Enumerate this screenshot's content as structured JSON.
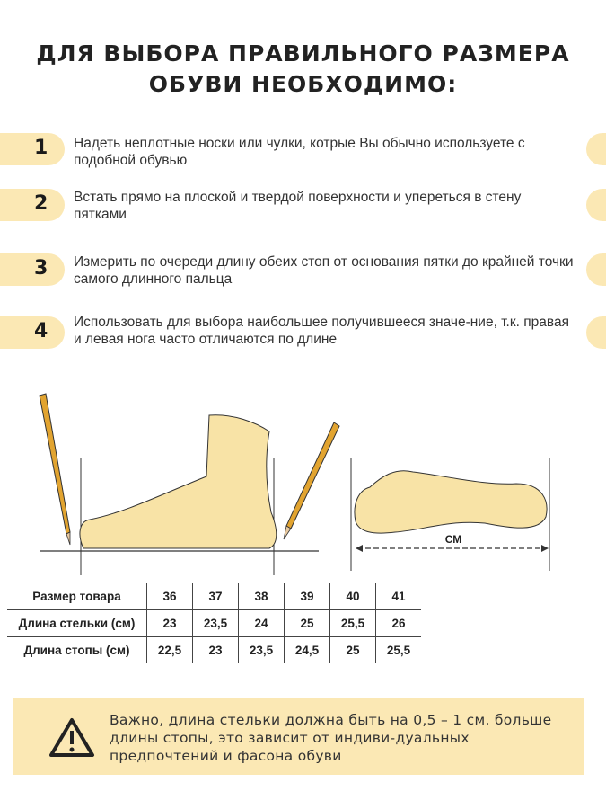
{
  "header": {
    "title_line1_pre": "ДЛЯ ВЫБОРА ",
    "title_line1_bold": "ПРАВИЛЬНОГО",
    "title_line1_post": " РАЗМЕРА",
    "title_line2": "ОБУВИ НЕОБХОДИМО:"
  },
  "steps": [
    {
      "num": "1",
      "text": "Надеть неплотные носки или чулки, котрые Вы обычно используете с подобной обувью"
    },
    {
      "num": "2",
      "text": "Встать прямо на плоской и твердой поверхности и упереться в стену пятками"
    },
    {
      "num": "3",
      "text": "Измерить по очереди длину обеих стоп от основания пятки до крайней точки самого длинного пальца"
    },
    {
      "num": "4",
      "text": "Использовать для выбора наибольшее получившееся значе-ние, т.к. правая и левая нога часто отличаются по длине"
    }
  ],
  "diagram": {
    "unit_label": "СМ"
  },
  "size_table": {
    "rows": [
      {
        "label": "Размер товара",
        "values": [
          "36",
          "37",
          "38",
          "39",
          "40",
          "41"
        ]
      },
      {
        "label": "Длина стельки (см)",
        "values": [
          "23",
          "23,5",
          "24",
          "25",
          "25,5",
          "26"
        ]
      },
      {
        "label": "Длина стопы (см)",
        "values": [
          "22,5",
          "23",
          "23,5",
          "24,5",
          "25",
          "25,5"
        ]
      }
    ]
  },
  "warning": {
    "icon": "warning-triangle-icon",
    "text": "Важно, длина стельки должна быть на 0,5 – 1 см. больше длины стопы, это зависит от индиви-дуальных предпочтений и фасона обуви"
  },
  "colors": {
    "accent": "#fbe8b4",
    "foot": "#f8e3a6"
  }
}
